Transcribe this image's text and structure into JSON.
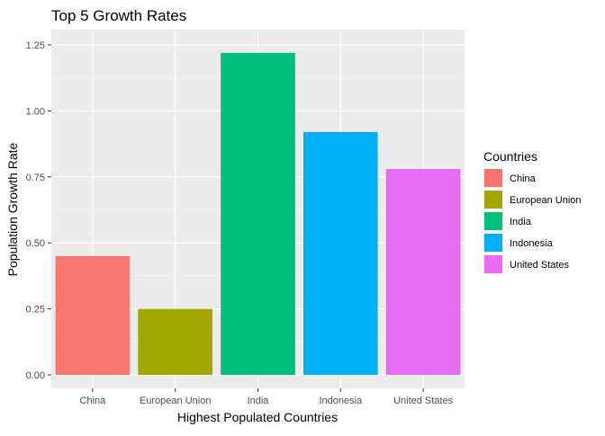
{
  "chart_data": {
    "type": "bar",
    "title": "Top 5 Growth Rates",
    "xlabel": "Highest Populated Countries",
    "ylabel": "Population Growth Rate",
    "categories": [
      "China",
      "European Union",
      "India",
      "Indonesia",
      "United States"
    ],
    "values": [
      0.45,
      0.25,
      1.22,
      0.92,
      0.78
    ],
    "colors": [
      "#F8766D",
      "#A3A500",
      "#00BF7D",
      "#00B0F6",
      "#E76BF3"
    ],
    "yticks": [
      "0.00",
      "0.25",
      "0.50",
      "0.75",
      "1.00",
      "1.25"
    ],
    "ylim": [
      0,
      1.25
    ],
    "grid": true,
    "legend": {
      "title": "Countries",
      "placement": "right",
      "entries": [
        "China",
        "European Union",
        "India",
        "Indonesia",
        "United States"
      ]
    }
  }
}
